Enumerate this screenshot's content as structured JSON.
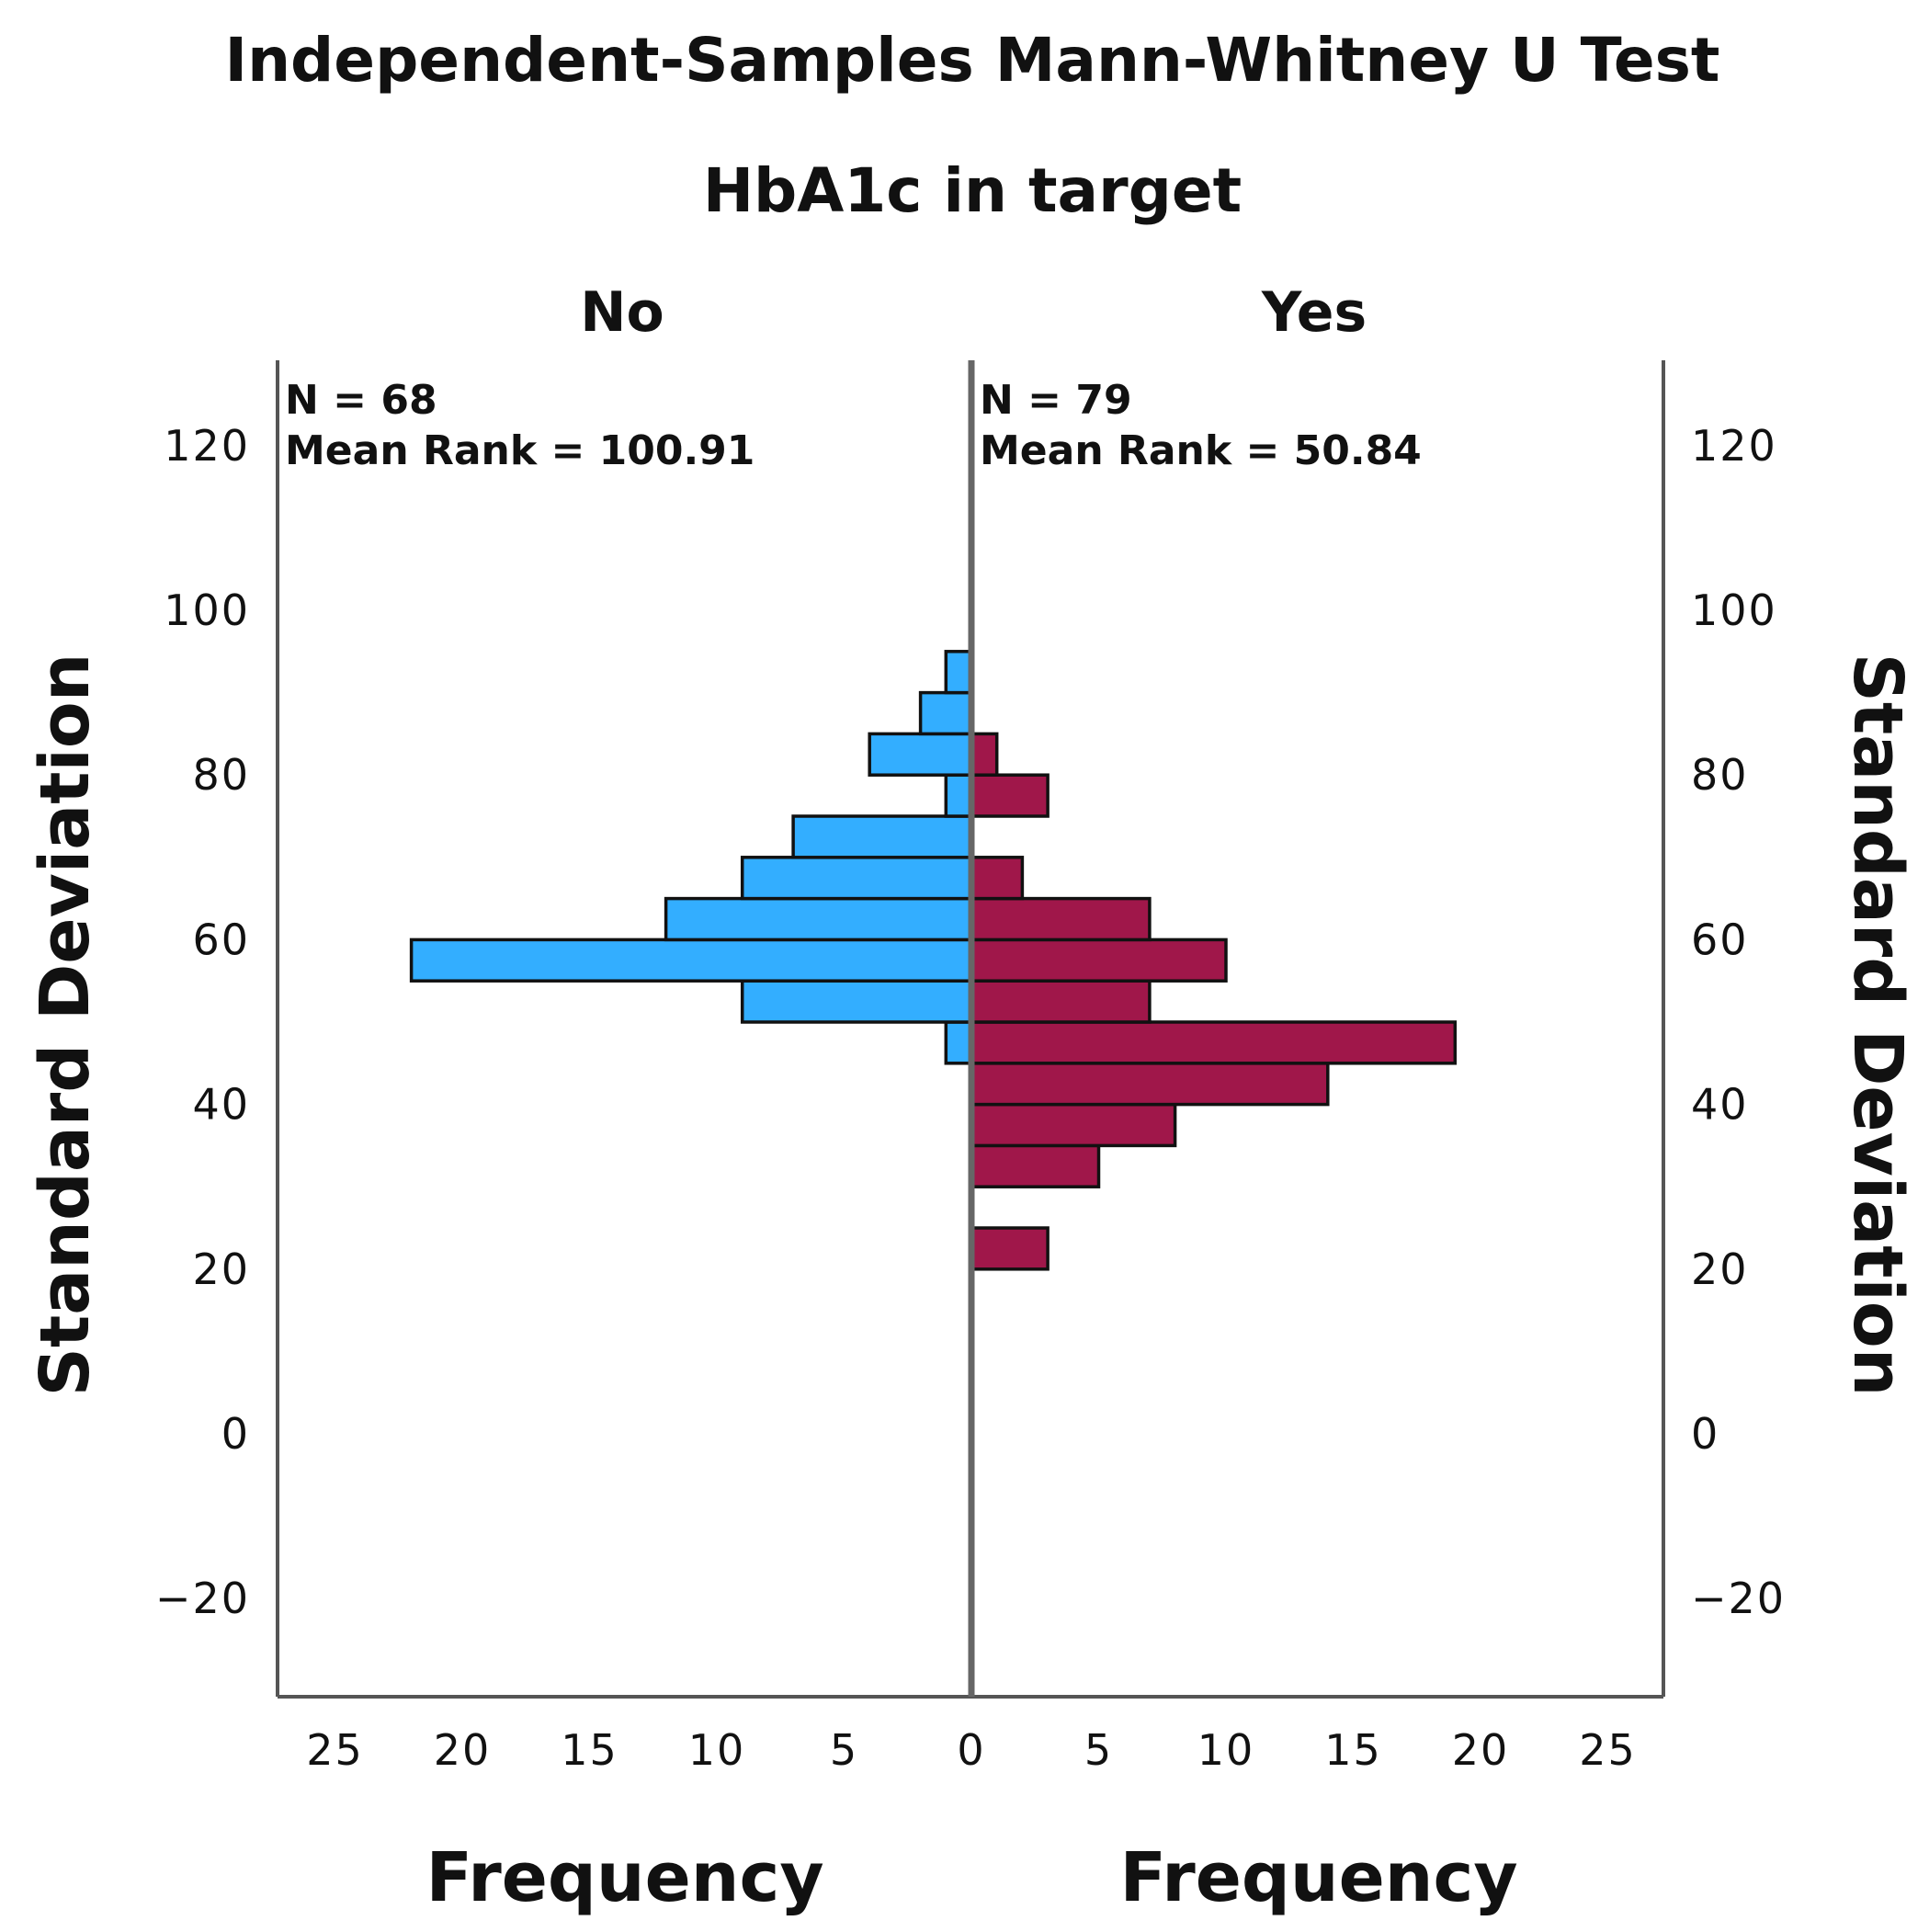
{
  "chart_data": {
    "type": "bar",
    "orientation": "population-pyramid",
    "title": "Independent-Samples Mann-Whitney U Test",
    "subtitle": "HbA1c in target",
    "ylabel": "Standard Deviation",
    "xlabel": "Frequency",
    "ylim": [
      -32,
      130
    ],
    "y_ticks": [
      -20,
      0,
      20,
      40,
      60,
      80,
      100,
      120
    ],
    "x_ticks": [
      0,
      5,
      10,
      15,
      20,
      25
    ],
    "xlim": [
      0,
      27
    ],
    "bin_width": 5,
    "series": [
      {
        "name": "No",
        "side": "left",
        "color": "#33AEFF",
        "n_label": "N = 68",
        "mean_rank_label": "Mean Rank = 100.91",
        "bins": [
          {
            "y_start": 45,
            "y_end": 50,
            "value": 1
          },
          {
            "y_start": 50,
            "y_end": 55,
            "value": 9
          },
          {
            "y_start": 55,
            "y_end": 60,
            "value": 22
          },
          {
            "y_start": 60,
            "y_end": 65,
            "value": 12
          },
          {
            "y_start": 65,
            "y_end": 70,
            "value": 9
          },
          {
            "y_start": 70,
            "y_end": 75,
            "value": 7
          },
          {
            "y_start": 75,
            "y_end": 80,
            "value": 1
          },
          {
            "y_start": 80,
            "y_end": 85,
            "value": 4
          },
          {
            "y_start": 85,
            "y_end": 90,
            "value": 2
          },
          {
            "y_start": 90,
            "y_end": 95,
            "value": 1
          }
        ]
      },
      {
        "name": "Yes",
        "side": "right",
        "color": "#A0174A",
        "n_label": "N = 79",
        "mean_rank_label": "Mean Rank = 50.84",
        "bins": [
          {
            "y_start": 20,
            "y_end": 25,
            "value": 3
          },
          {
            "y_start": 30,
            "y_end": 35,
            "value": 5
          },
          {
            "y_start": 35,
            "y_end": 40,
            "value": 8
          },
          {
            "y_start": 40,
            "y_end": 45,
            "value": 14
          },
          {
            "y_start": 45,
            "y_end": 50,
            "value": 19
          },
          {
            "y_start": 50,
            "y_end": 55,
            "value": 7
          },
          {
            "y_start": 55,
            "y_end": 60,
            "value": 10
          },
          {
            "y_start": 60,
            "y_end": 65,
            "value": 7
          },
          {
            "y_start": 65,
            "y_end": 70,
            "value": 2
          },
          {
            "y_start": 75,
            "y_end": 80,
            "value": 3
          },
          {
            "y_start": 80,
            "y_end": 85,
            "value": 1
          }
        ]
      }
    ]
  }
}
